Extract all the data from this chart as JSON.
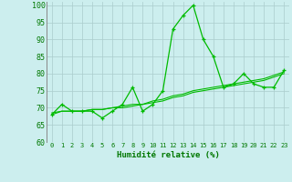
{
  "x": [
    0,
    1,
    2,
    3,
    4,
    5,
    6,
    7,
    8,
    9,
    10,
    11,
    12,
    13,
    14,
    15,
    16,
    17,
    18,
    19,
    20,
    21,
    22,
    23
  ],
  "y_main": [
    68,
    71,
    69,
    69,
    69,
    67,
    69,
    71,
    76,
    69,
    71,
    75,
    93,
    97,
    100,
    90,
    85,
    76,
    77,
    80,
    77,
    76,
    76,
    81
  ],
  "y_trend1": [
    68,
    69,
    69,
    69,
    69.5,
    69.5,
    70,
    70,
    70.5,
    71,
    71.5,
    72,
    73,
    73.5,
    74.5,
    75,
    75.5,
    76,
    76.5,
    77,
    77.5,
    78,
    79,
    80
  ],
  "y_trend2": [
    68.5,
    69,
    69,
    69,
    69.5,
    69.5,
    70,
    70.5,
    71,
    71,
    72,
    72.5,
    73.5,
    74,
    75,
    75.5,
    76,
    76.5,
    77,
    77.5,
    78,
    78.5,
    79.5,
    80.5
  ],
  "line_color": "#00bb00",
  "bg_color": "#cceeee",
  "grid_color": "#aacccc",
  "axis_label_color": "#007700",
  "tick_color": "#007700",
  "ylim": [
    60,
    101
  ],
  "yticks": [
    60,
    65,
    70,
    75,
    80,
    85,
    90,
    95,
    100
  ],
  "xlabel": "Humidité relative (%)"
}
